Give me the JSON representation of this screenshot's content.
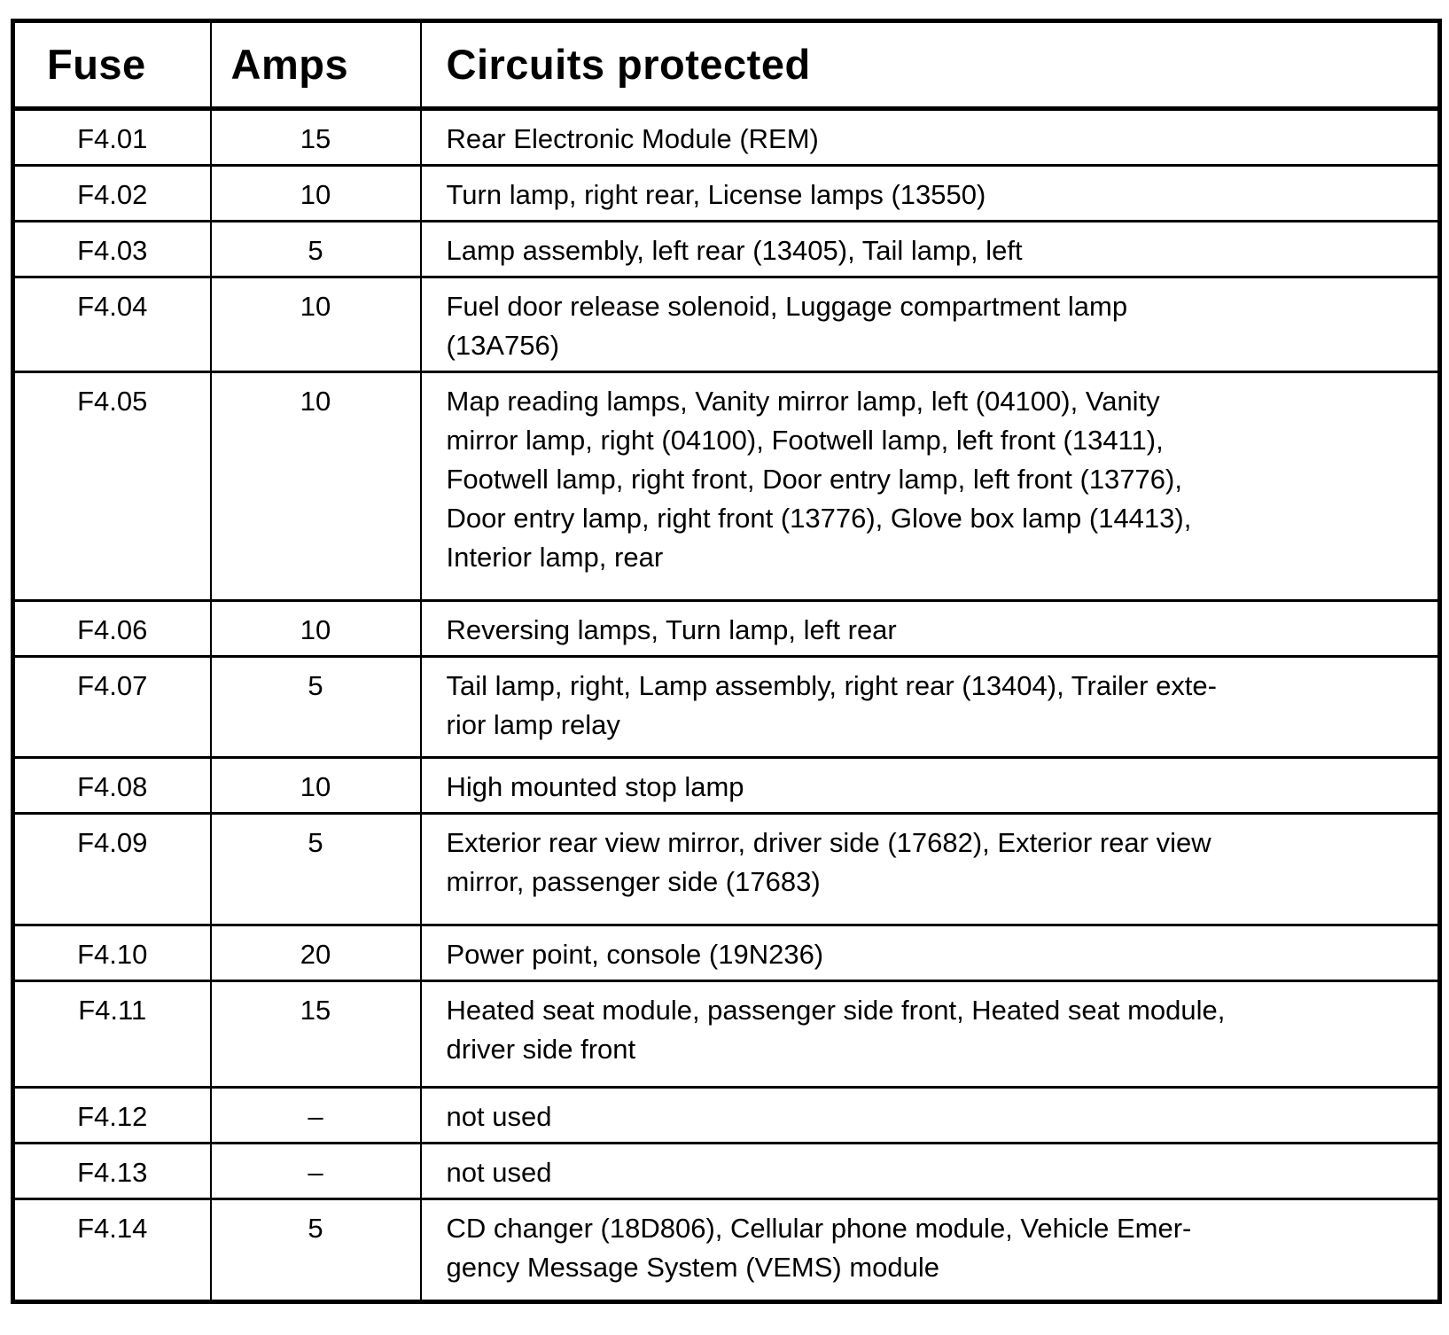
{
  "table": {
    "columns": [
      "Fuse",
      "Amps",
      "Circuits protected"
    ],
    "rows": [
      {
        "fuse": "F4.01",
        "amps": "15",
        "circuits": [
          "Rear Electronic Module (REM)"
        ]
      },
      {
        "fuse": "F4.02",
        "amps": "10",
        "circuits": [
          "Turn lamp, right rear, License lamps (13550)"
        ]
      },
      {
        "fuse": "F4.03",
        "amps": "5",
        "circuits": [
          "Lamp assembly, left rear (13405), Tail lamp, left"
        ]
      },
      {
        "fuse": "F4.04",
        "amps": "10",
        "circuits": [
          "Fuel door release solenoid, Luggage compartment lamp",
          "(13A756)"
        ]
      },
      {
        "fuse": "F4.05",
        "amps": "10",
        "circuits": [
          "Map reading lamps, Vanity mirror lamp, left (04100), Vanity",
          "mirror lamp, right (04100), Footwell lamp, left front (13411),",
          "Footwell lamp, right front, Door entry lamp, left front (13776),",
          "Door entry lamp, right front (13776), Glove box lamp (14413),",
          "Interior lamp, rear"
        ]
      },
      {
        "fuse": "F4.06",
        "amps": "10",
        "circuits": [
          "Reversing lamps, Turn lamp, left rear"
        ]
      },
      {
        "fuse": "F4.07",
        "amps": "5",
        "circuits": [
          "Tail lamp, right, Lamp assembly, right rear (13404), Trailer exte-",
          "rior lamp relay"
        ]
      },
      {
        "fuse": "F4.08",
        "amps": "10",
        "circuits": [
          "High mounted stop lamp"
        ]
      },
      {
        "fuse": "F4.09",
        "amps": "5",
        "circuits": [
          "Exterior rear view mirror, driver side (17682), Exterior rear view",
          "mirror, passenger side (17683)"
        ]
      },
      {
        "fuse": "F4.10",
        "amps": "20",
        "circuits": [
          "Power point, console (19N236)"
        ]
      },
      {
        "fuse": "F4.11",
        "amps": "15",
        "circuits": [
          "Heated seat module, passenger side front, Heated seat module,",
          "driver side front"
        ]
      },
      {
        "fuse": "F4.12",
        "amps": "–",
        "circuits": [
          "not used"
        ]
      },
      {
        "fuse": "F4.13",
        "amps": "–",
        "circuits": [
          "not used"
        ]
      },
      {
        "fuse": "F4.14",
        "amps": "5",
        "circuits": [
          "CD changer (18D806), Cellular phone module, Vehicle Emer-",
          "gency Message System (VEMS) module"
        ]
      }
    ]
  }
}
